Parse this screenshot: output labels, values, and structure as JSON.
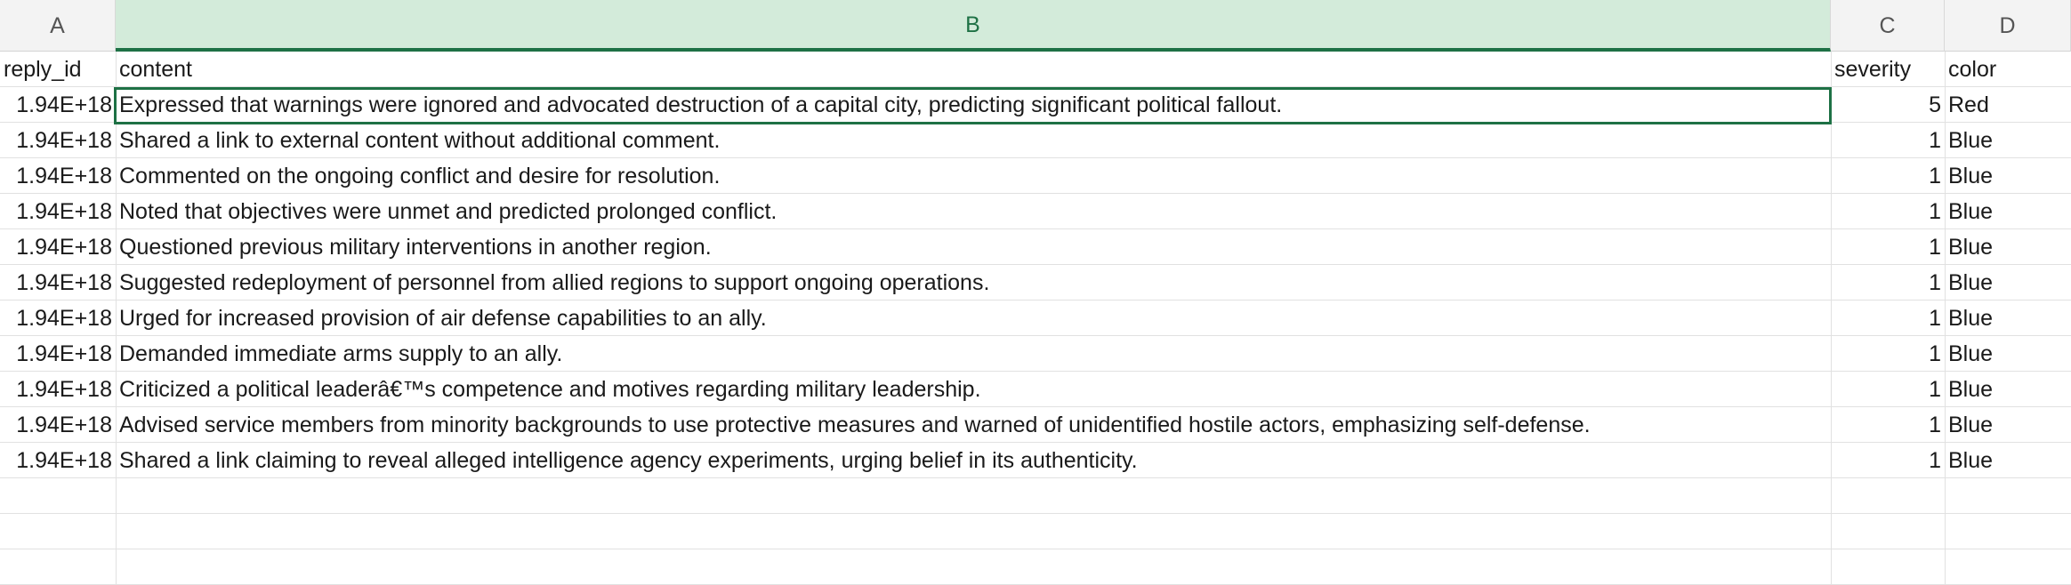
{
  "columns": [
    "A",
    "B",
    "C",
    "D"
  ],
  "selected_column": "B",
  "header_row": {
    "reply_id": "reply_id",
    "content": "content",
    "severity": "severity",
    "color": "color"
  },
  "rows": [
    {
      "reply_id": "1.94E+18",
      "content": "Expressed that warnings were ignored and advocated destruction of a capital city, predicting significant political fallout.",
      "severity": "5",
      "color": "Red"
    },
    {
      "reply_id": "1.94E+18",
      "content": "Shared a link to external content without additional comment.",
      "severity": "1",
      "color": "Blue"
    },
    {
      "reply_id": "1.94E+18",
      "content": "Commented on the ongoing conflict and desire for resolution.",
      "severity": "1",
      "color": "Blue"
    },
    {
      "reply_id": "1.94E+18",
      "content": "Noted that objectives were unmet and predicted prolonged conflict.",
      "severity": "1",
      "color": "Blue"
    },
    {
      "reply_id": "1.94E+18",
      "content": "Questioned previous military interventions in another region.",
      "severity": "1",
      "color": "Blue"
    },
    {
      "reply_id": "1.94E+18",
      "content": "Suggested redeployment of personnel from allied regions to support ongoing operations.",
      "severity": "1",
      "color": "Blue"
    },
    {
      "reply_id": "1.94E+18",
      "content": "Urged for increased provision of air defense capabilities to an ally.",
      "severity": "1",
      "color": "Blue"
    },
    {
      "reply_id": "1.94E+18",
      "content": "Demanded immediate arms supply to an ally.",
      "severity": "1",
      "color": "Blue"
    },
    {
      "reply_id": "1.94E+18",
      "content": "Criticized a political leaderâ€™s competence and motives regarding military leadership.",
      "severity": "1",
      "color": "Blue"
    },
    {
      "reply_id": "1.94E+18",
      "content": "Advised service members from minority backgrounds to use protective measures and warned of unidentified hostile actors, emphasizing self-defense.",
      "severity": "1",
      "color": "Blue"
    },
    {
      "reply_id": "1.94E+18",
      "content": "Shared a link claiming to reveal alleged intelligence agency experiments, urging belief in its authenticity.",
      "severity": "1",
      "color": "Blue"
    }
  ],
  "colors": {
    "accent": "#1e7145",
    "selected_header_bg": "#d3ebda",
    "gridline": "#e1e1e1",
    "header_bg": "#f3f3f3"
  }
}
